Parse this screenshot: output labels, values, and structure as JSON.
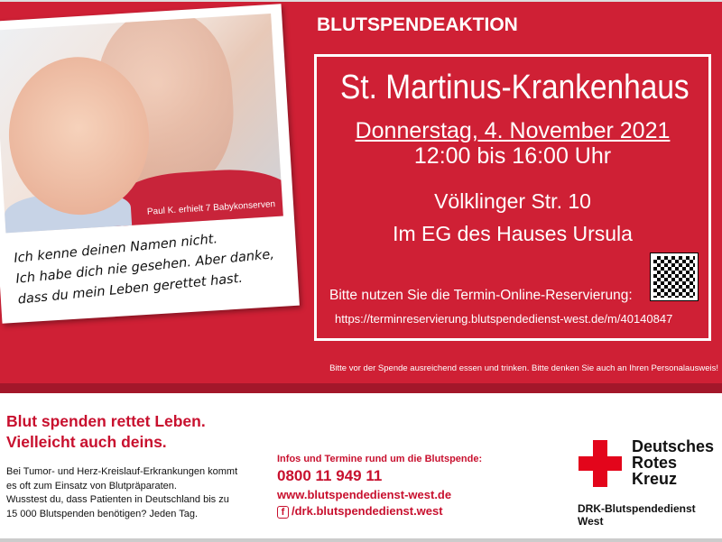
{
  "poster": {
    "photo_caption": "Paul K. erhielt 7 Babykonserven",
    "handwritten": [
      "Ich kenne deinen Namen nicht.",
      "Ich habe dich nie gesehen. Aber danke,",
      "dass du mein Leben gerettet hast."
    ],
    "title": "BLUTSPENDEAKTION",
    "venue": "St. Martinus-Krankenhaus",
    "date": "Donnerstag, 4. November 2021",
    "time": "12:00 bis 16:00 Uhr",
    "address": "Völklinger Str. 10",
    "location_detail": "Im EG des Hauses Ursula",
    "reservation_text": "Bitte nutzen Sie die Termin-Online-Reservierung:",
    "reservation_url": "https://terminreservierung.blutspendedienst-west.de/m/40140847",
    "note": "Bitte vor der Spende ausreichend essen und trinken. Bitte denken Sie auch an Ihren Personalausweis!"
  },
  "footer": {
    "slogan": [
      "Blut spenden rettet Leben.",
      "Vielleicht auch deins."
    ],
    "body": [
      "Bei Tumor- und Herz-Kreislauf-Erkrankungen kommt",
      "es oft zum Einsatz von Blutpräparaten.",
      "Wusstest du, dass Patienten in Deutschland bis zu",
      "15 000 Blutspenden benötigen? Jeden Tag."
    ],
    "infos_heading": "Infos und Termine rund um die Blutspende:",
    "phone": "0800 11 949 11",
    "website": "www.blutspendedienst-west.de",
    "facebook_icon_glyph": "f",
    "facebook": "/drk.blutspendedienst.west",
    "logo_lines": [
      "Deutsches",
      "Rotes",
      "Kreuz"
    ],
    "org": "DRK-Blutspendedienst West"
  },
  "colors": {
    "brand_red": "#cf2035",
    "cross_red": "#e3051b",
    "dark_red": "#a3172a"
  }
}
